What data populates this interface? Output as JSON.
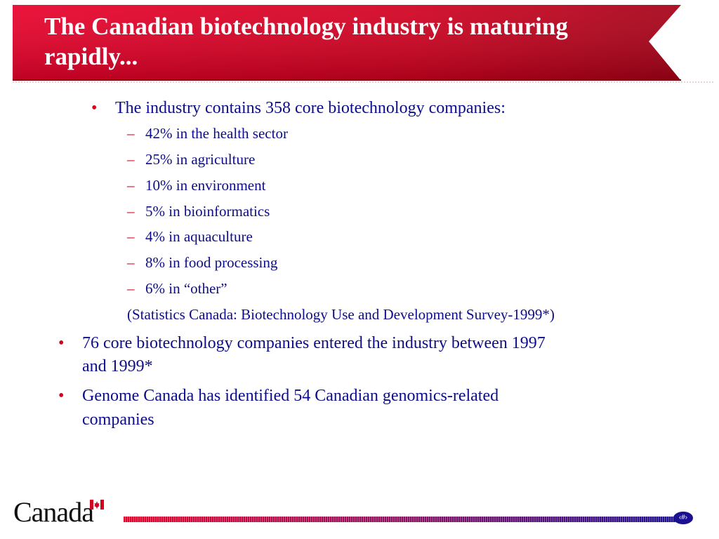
{
  "slide": {
    "title": "The Canadian biotechnology industry is maturing rapidly...",
    "bullets": [
      {
        "text": "The industry contains 358 core biotechnology companies:",
        "subitems": [
          "42% in the health sector",
          "25% in agriculture",
          "10% in environment",
          "5% in bioinformatics",
          "4% in aquaculture",
          "8% in food processing",
          "6% in “other”"
        ],
        "source": "(Statistics Canada: Biotechnology Use and Development Survey-1999*)"
      },
      {
        "text_line1": "76 core biotechnology companies entered the industry between 1997",
        "text_line2": "and 1999*"
      },
      {
        "text_line1": "Genome Canada has identified 54 Canadian genomics-related",
        "text_line2": "companies"
      }
    ],
    "bullet_glyph": "•",
    "dash_glyph": "–"
  },
  "footer": {
    "logo_text": "Canada",
    "page_number": "‹#›"
  },
  "colors": {
    "title_red": "#c8001e",
    "text_blue": "#0d0d8a",
    "bullet_red": "#d4001f"
  }
}
